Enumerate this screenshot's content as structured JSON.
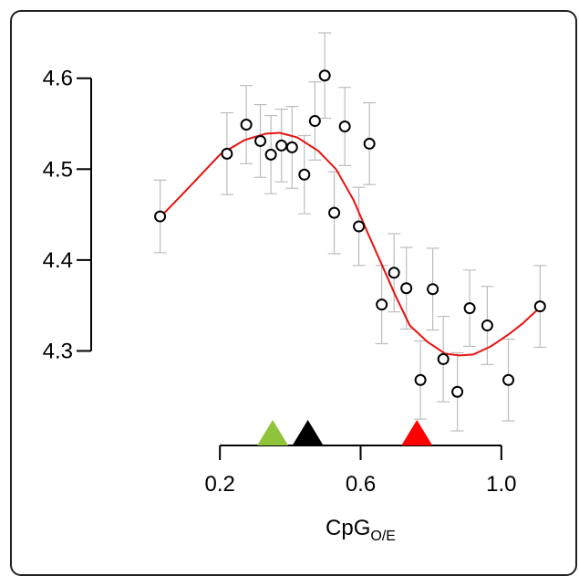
{
  "chart_data": {
    "type": "scatter",
    "title": "",
    "xlabel": "CpG",
    "xlabel_subscript": "O/E",
    "ylabel": "",
    "xlim": [
      -0.14,
      1.13
    ],
    "ylim": [
      4.2,
      4.66
    ],
    "x_ticks": [
      0.2,
      0.6,
      1.0
    ],
    "x_tick_labels": [
      "0.2",
      "0.6",
      "1.0"
    ],
    "y_ticks": [
      4.3,
      4.4,
      4.5,
      4.6
    ],
    "y_tick_labels": [
      "4.3",
      "4.4",
      "4.5",
      "4.6"
    ],
    "grid": false,
    "series": [
      {
        "style": "open-circle-with-error-bars",
        "points": [
          {
            "x": 0.03,
            "y": 4.448,
            "err": 0.04
          },
          {
            "x": 0.22,
            "y": 4.517,
            "err": 0.045
          },
          {
            "x": 0.275,
            "y": 4.549,
            "err": 0.043
          },
          {
            "x": 0.315,
            "y": 4.531,
            "err": 0.04
          },
          {
            "x": 0.345,
            "y": 4.516,
            "err": 0.043
          },
          {
            "x": 0.375,
            "y": 4.526,
            "err": 0.04
          },
          {
            "x": 0.405,
            "y": 4.524,
            "err": 0.045
          },
          {
            "x": 0.44,
            "y": 4.494,
            "err": 0.043
          },
          {
            "x": 0.47,
            "y": 4.553,
            "err": 0.043
          },
          {
            "x": 0.498,
            "y": 4.603,
            "err": 0.047
          },
          {
            "x": 0.525,
            "y": 4.452,
            "err": 0.045
          },
          {
            "x": 0.555,
            "y": 4.547,
            "err": 0.043
          },
          {
            "x": 0.595,
            "y": 4.437,
            "err": 0.043
          },
          {
            "x": 0.625,
            "y": 4.528,
            "err": 0.045
          },
          {
            "x": 0.66,
            "y": 4.351,
            "err": 0.043
          },
          {
            "x": 0.695,
            "y": 4.386,
            "err": 0.043
          },
          {
            "x": 0.73,
            "y": 4.369,
            "err": 0.045
          },
          {
            "x": 0.77,
            "y": 4.268,
            "err": 0.043
          },
          {
            "x": 0.805,
            "y": 4.368,
            "err": 0.045
          },
          {
            "x": 0.835,
            "y": 4.291,
            "err": 0.047
          },
          {
            "x": 0.875,
            "y": 4.255,
            "err": 0.043
          },
          {
            "x": 0.91,
            "y": 4.347,
            "err": 0.042
          },
          {
            "x": 0.96,
            "y": 4.328,
            "err": 0.043
          },
          {
            "x": 1.02,
            "y": 4.268,
            "err": 0.045
          },
          {
            "x": 1.11,
            "y": 4.349,
            "err": 0.045
          }
        ]
      },
      {
        "style": "smooth-line",
        "color": "#e8120f",
        "x": [
          0.03,
          0.1,
          0.2,
          0.27,
          0.33,
          0.37,
          0.42,
          0.48,
          0.53,
          0.58,
          0.62,
          0.66,
          0.7,
          0.74,
          0.79,
          0.84,
          0.88,
          0.92,
          0.97,
          1.02,
          1.06,
          1.11
        ],
        "y": [
          4.447,
          4.475,
          4.516,
          4.532,
          4.539,
          4.54,
          4.535,
          4.52,
          4.5,
          4.466,
          4.43,
          4.395,
          4.36,
          4.328,
          4.31,
          4.297,
          4.295,
          4.296,
          4.305,
          4.318,
          4.33,
          4.348
        ]
      }
    ],
    "markers": [
      {
        "x": 0.35,
        "color": "#8fc33a"
      },
      {
        "x": 0.45,
        "color": "#000000"
      },
      {
        "x": 0.76,
        "color": "#ff0000"
      }
    ]
  }
}
